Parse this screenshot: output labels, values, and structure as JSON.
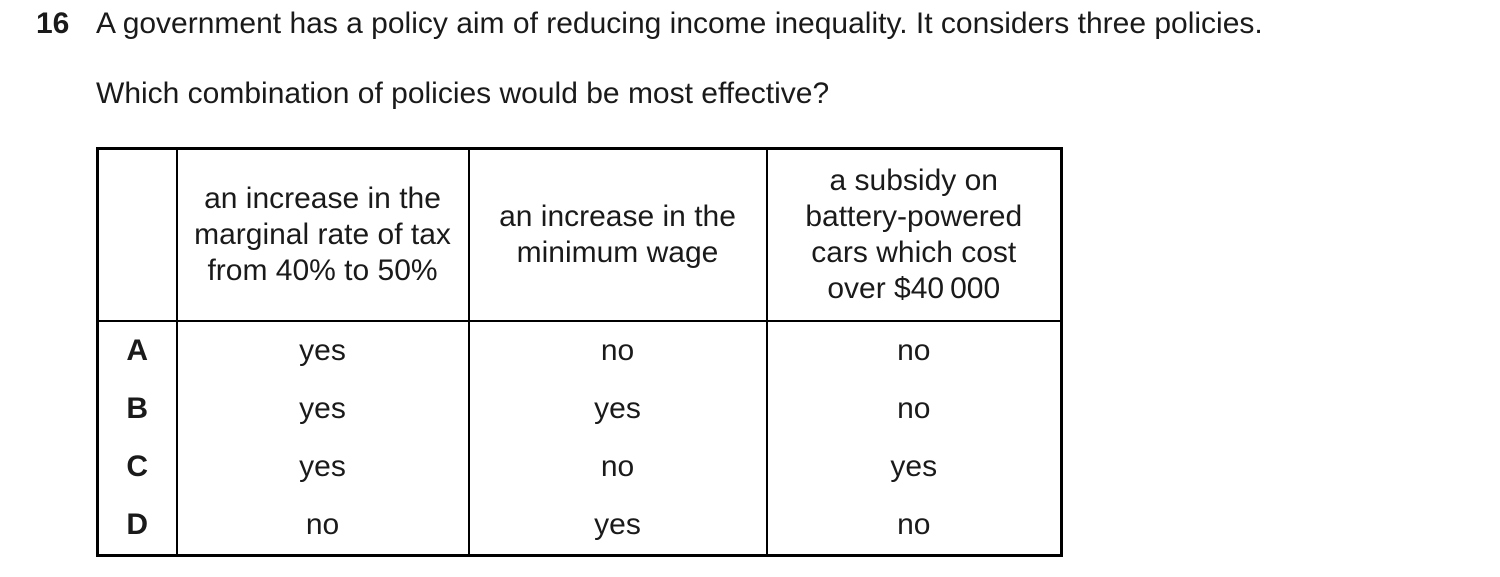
{
  "meta": {
    "background_color": "#ffffff",
    "text_color": "#1a1a1a",
    "border_color": "#000000"
  },
  "question": {
    "number": "16",
    "stem": "A government has a policy aim of reducing income inequality. It considers three policies.",
    "prompt": "Which combination of policies would be most effective?"
  },
  "table": {
    "corner_label": "",
    "headers": [
      "an increase in the\nmarginal rate of tax\nfrom 40% to 50%",
      "an increase in the\nminimum wage",
      "a subsidy on\nbattery-powered\ncars which cost\nover $40 000"
    ],
    "rows": [
      {
        "label": "A",
        "cells": [
          "yes",
          "no",
          "no"
        ]
      },
      {
        "label": "B",
        "cells": [
          "yes",
          "yes",
          "no"
        ]
      },
      {
        "label": "C",
        "cells": [
          "yes",
          "no",
          "yes"
        ]
      },
      {
        "label": "D",
        "cells": [
          "no",
          "yes",
          "no"
        ]
      }
    ]
  }
}
